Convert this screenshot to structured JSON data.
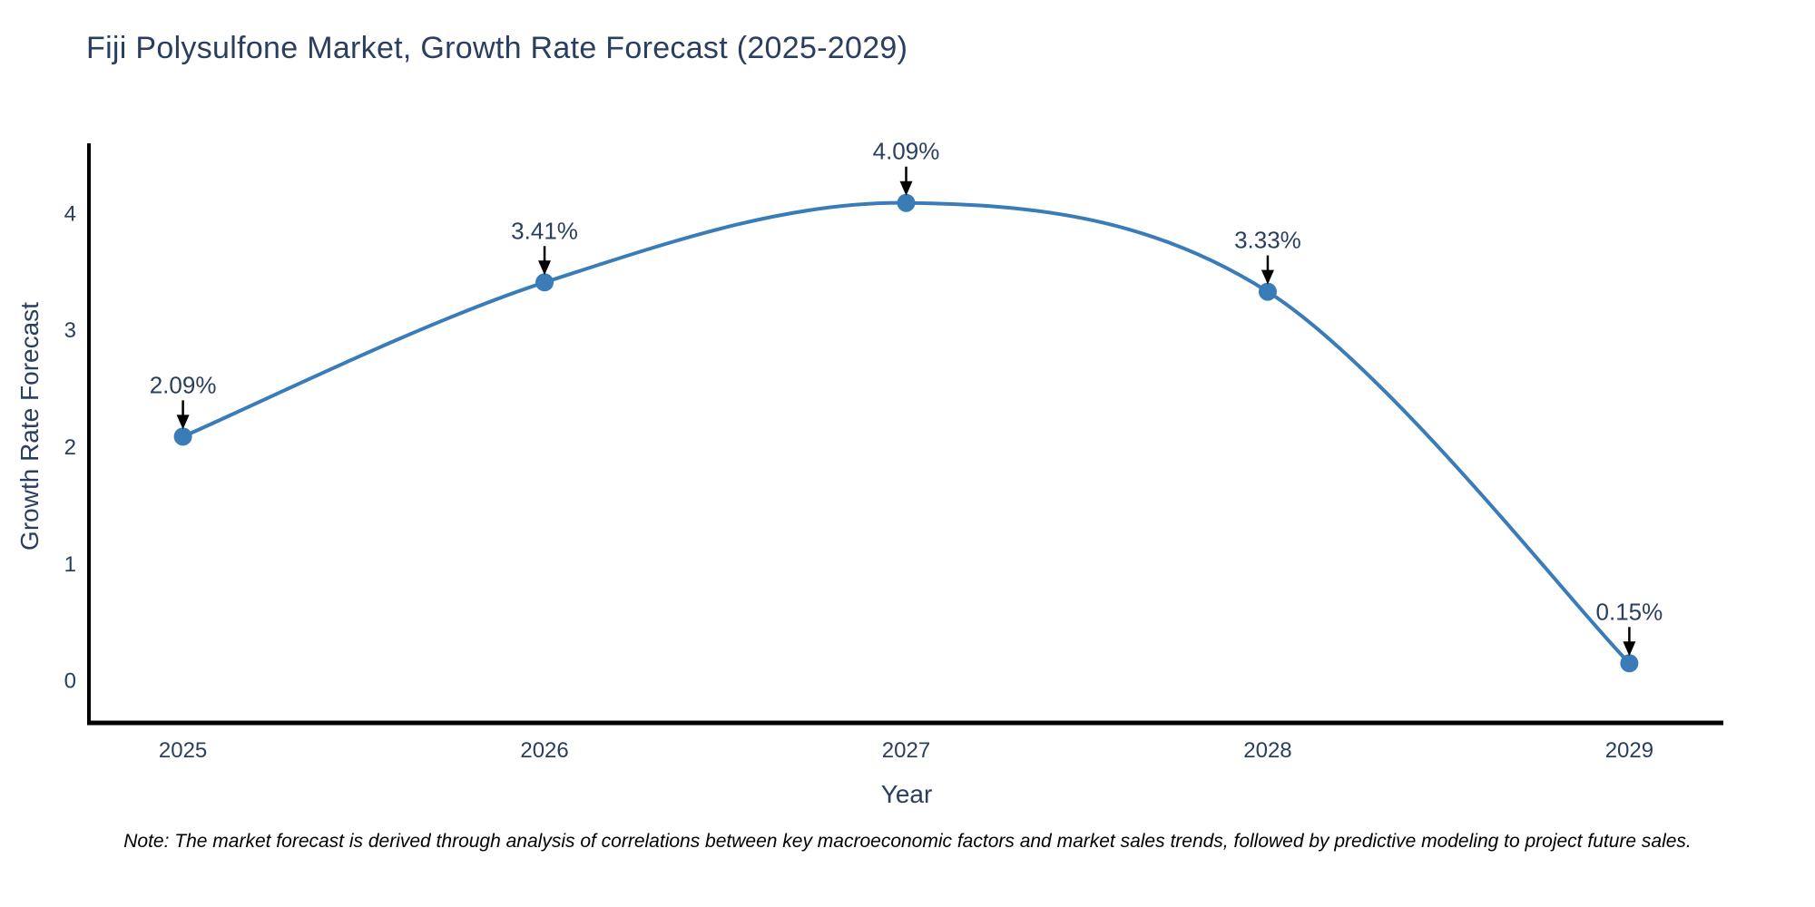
{
  "chart_data": {
    "type": "line",
    "title": "Fiji Polysulfone Market, Growth Rate Forecast (2025-2029)",
    "xlabel": "Year",
    "ylabel": "Growth Rate Forecast",
    "x": [
      2025,
      2026,
      2027,
      2028,
      2029
    ],
    "xticks": [
      "2025",
      "2026",
      "2027",
      "2028",
      "2029"
    ],
    "yticks": [
      0,
      1,
      2,
      3,
      4
    ],
    "xlim": [
      2024.74,
      2029.26
    ],
    "ylim": [
      -0.36,
      4.6
    ],
    "grid": false,
    "legend": "none",
    "line_shape": "spline",
    "series": [
      {
        "name": "Growth Rate Forecast",
        "values": [
          2.09,
          3.41,
          4.09,
          3.33,
          0.15
        ],
        "point_labels": [
          "2.09%",
          "3.41%",
          "4.09%",
          "3.33%",
          "0.15%"
        ]
      }
    ],
    "colors": {
      "line": "#3a7cb8",
      "marker": "#3a7cb8",
      "axis": "#000000",
      "text": "#2a3f5f",
      "annotation_text": "#2a3f5f",
      "annotation_arrow": "#000000",
      "background": "#ffffff"
    },
    "note": "Note: The market forecast is derived through analysis of correlations between key macroeconomic factors and market sales trends, followed by predictive modeling to project future sales."
  }
}
